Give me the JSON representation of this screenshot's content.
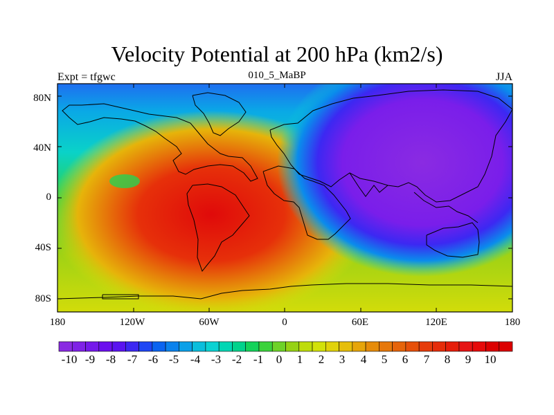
{
  "title": "Velocity Potential at 200 hPa (km2/s)",
  "left_label": "Expt = tfgwc",
  "center_label": "010_5_MaBP",
  "right_label": "JJA",
  "lat_ticks": [
    {
      "value": 80,
      "label": "80N"
    },
    {
      "value": 40,
      "label": "40N"
    },
    {
      "value": 0,
      "label": "0"
    },
    {
      "value": -40,
      "label": "40S"
    },
    {
      "value": -80,
      "label": "80S"
    }
  ],
  "lon_ticks": [
    {
      "value": -180,
      "label": "180"
    },
    {
      "value": -120,
      "label": "120W"
    },
    {
      "value": -60,
      "label": "60W"
    },
    {
      "value": 0,
      "label": "0"
    },
    {
      "value": 60,
      "label": "60E"
    },
    {
      "value": 120,
      "label": "120E"
    },
    {
      "value": 180,
      "label": "180"
    }
  ],
  "colorbar": {
    "min": -11,
    "max": 11,
    "label_values": [
      "-10",
      "-9",
      "-8",
      "-7",
      "-6",
      "-5",
      "-4",
      "-3",
      "-2",
      "-1",
      "0",
      "1",
      "2",
      "3",
      "4",
      "5",
      "6",
      "7",
      "8",
      "9",
      "10"
    ],
    "colors": [
      "#8a2be2",
      "#7f22e6",
      "#7519ea",
      "#6b10ee",
      "#5a14f0",
      "#3c28f2",
      "#1e46f4",
      "#0a64f0",
      "#0a82ec",
      "#0aa0e8",
      "#0abedc",
      "#0ad2d2",
      "#00d6b4",
      "#00d28c",
      "#14d25a",
      "#3cd23c",
      "#6ed228",
      "#96d214",
      "#bedc0a",
      "#d2e10a",
      "#e1d20a",
      "#e6be0a",
      "#e6a50a",
      "#e68c0a",
      "#e6780a",
      "#e6640a",
      "#e6500a",
      "#e63c0a",
      "#e62d0a",
      "#e61e0a",
      "#e61414",
      "#e60a0a",
      "#dc0000",
      "#dc0000"
    ]
  },
  "map_data": {
    "projection": "cylindrical-equidistant",
    "field": "velocity potential",
    "units": "km2/s",
    "level_hpa": 200,
    "lon_range": [
      -180,
      180
    ],
    "lat_range": [
      -90,
      90
    ],
    "centers": [
      {
        "lon": -55,
        "lat": -15,
        "value": 11
      },
      {
        "lon": 125,
        "lat": 35,
        "value": -11
      }
    ]
  }
}
